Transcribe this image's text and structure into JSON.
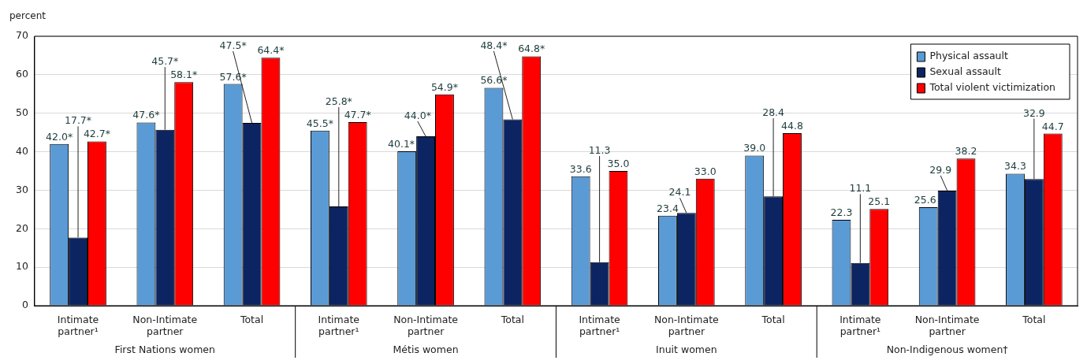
{
  "chart_data": {
    "type": "bar",
    "ylabel": "percent",
    "categories": [
      "Intimate partner¹",
      "Non-Intimate partner",
      "Total",
      "Intimate partner¹",
      "Non-Intimate partner",
      "Total",
      "Intimate partner¹",
      "Non-Intimate partner",
      "Total",
      "Intimate partner¹",
      "Non-Intimate partner",
      "Total"
    ],
    "annotations": [
      "First Nations women",
      "Métis women",
      "Inuit women",
      "Non-Indigenous women†"
    ],
    "series": [
      {
        "name": "Physical assault",
        "color": "#5b9bd5",
        "values": [
          42.0,
          47.6,
          57.6,
          45.5,
          40.1,
          56.6,
          33.6,
          23.4,
          39.0,
          22.3,
          25.6,
          34.3
        ],
        "value_labels": [
          "42.0*",
          "47.6*",
          "57.6*",
          "45.5*",
          "40.1*",
          "56.6*",
          "33.6",
          "23.4",
          "39.0",
          "22.3",
          "25.6",
          "34.3"
        ]
      },
      {
        "name": "Sexual assault",
        "color": "#0c2461",
        "values": [
          17.7,
          45.7,
          47.5,
          25.8,
          44.0,
          48.4,
          11.3,
          24.1,
          28.4,
          11.1,
          29.9,
          32.9
        ],
        "value_labels": [
          "17.7*",
          "45.7*",
          "47.5*",
          "25.8*",
          "44.0*",
          "48.4*",
          "11.3",
          "24.1",
          "28.4",
          "11.1",
          "29.9",
          "32.9"
        ]
      },
      {
        "name": "Total violent victimization",
        "color": "#ff0000",
        "values": [
          42.7,
          58.1,
          64.4,
          47.7,
          54.9,
          64.8,
          35.0,
          33.0,
          44.8,
          25.1,
          38.2,
          44.7
        ],
        "value_labels": [
          "42.7*",
          "58.1*",
          "64.4*",
          "47.7*",
          "54.9*",
          "64.8*",
          "35.0",
          "33.0",
          "44.8",
          "25.1",
          "38.2",
          "44.7"
        ]
      }
    ],
    "ylim": [
      0,
      70
    ],
    "yticks": [
      0,
      10,
      20,
      30,
      40,
      50,
      60,
      70
    ],
    "grid": "y",
    "legend": "top right"
  }
}
